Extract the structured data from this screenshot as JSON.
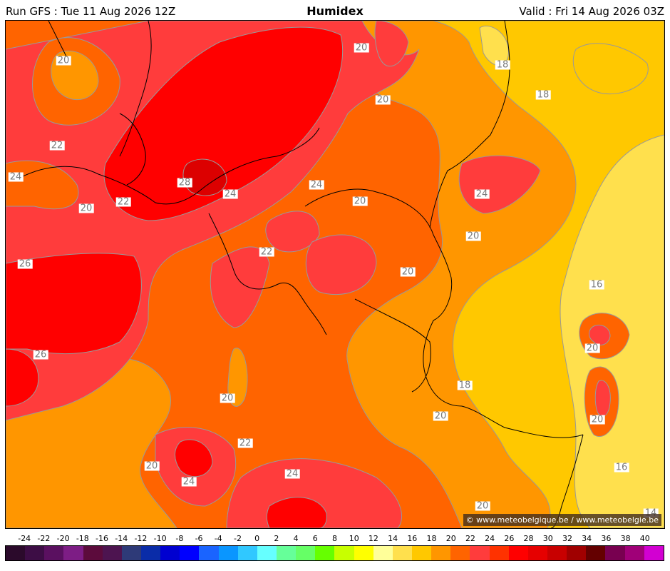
{
  "header": {
    "run": "Run GFS : Tue 11 Aug 2026 12Z",
    "title": "Humidex",
    "valid": "Valid : Fri 14 Aug 2026 03Z"
  },
  "map": {
    "credit": "© www.meteobelgique.be / www.meteobelgie.be",
    "contour_labels": [
      "20",
      "20",
      "20",
      "18",
      "18",
      "22",
      "24",
      "28",
      "24",
      "24",
      "20",
      "20",
      "22",
      "22",
      "24",
      "20",
      "26",
      "26",
      "20",
      "20",
      "16",
      "20",
      "18",
      "20",
      "20",
      "20",
      "22",
      "24",
      "24",
      "20",
      "16",
      "14"
    ]
  },
  "legend": {
    "ticks": [
      "-24",
      "-22",
      "-20",
      "-18",
      "-16",
      "-14",
      "-12",
      "-10",
      "-8",
      "-6",
      "-4",
      "-2",
      "0",
      "2",
      "4",
      "6",
      "8",
      "10",
      "12",
      "14",
      "16",
      "18",
      "20",
      "22",
      "24",
      "26",
      "28",
      "30",
      "32",
      "34",
      "36",
      "38",
      "40"
    ],
    "colors": [
      "#2b0a2b",
      "#3d0d45",
      "#5a1060",
      "#7d1d85",
      "#5c0b3c",
      "#4d1450",
      "#2e3a78",
      "#0a2ca8",
      "#0000d0",
      "#0000ff",
      "#1a64ff",
      "#0a96ff",
      "#30c8ff",
      "#66ffff",
      "#66ff99",
      "#66ff66",
      "#66ff00",
      "#c8ff00",
      "#ffff00",
      "#ffff99",
      "#ffe04d",
      "#ffc800",
      "#ff9600",
      "#ff6400",
      "#ff3c3c",
      "#ff3200",
      "#ff0000",
      "#e60000",
      "#c80000",
      "#a00000",
      "#640000",
      "#780050",
      "#a00078",
      "#d200d2"
    ]
  }
}
